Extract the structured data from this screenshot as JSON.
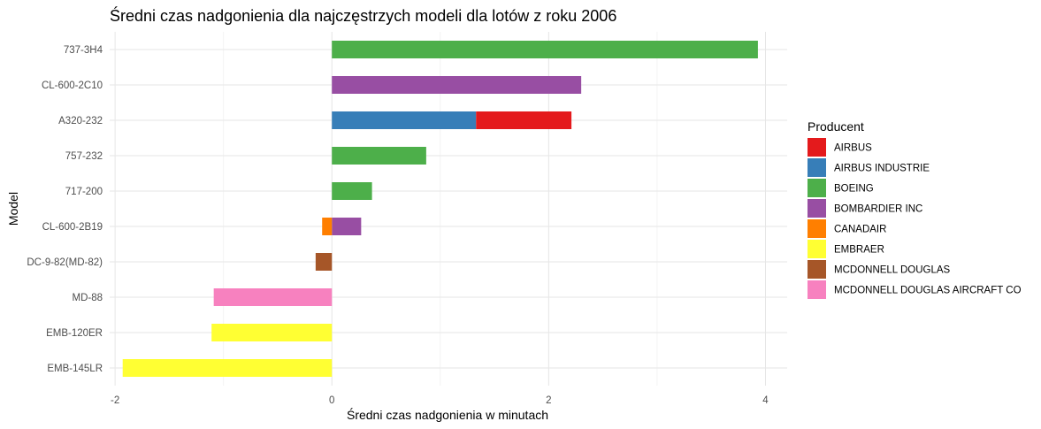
{
  "chart_data": {
    "type": "bar",
    "orientation": "horizontal",
    "stacked": true,
    "title": "Średni czas nadgonienia dla najczęstrzych modeli dla lotów z roku 2006",
    "xlabel": "Średni czas nadgonienia w minutach",
    "ylabel": "Model",
    "xlim": [
      -2.05,
      4.2
    ],
    "xticks": [
      -2,
      0,
      2,
      4
    ],
    "grid": true,
    "legend_position": "right",
    "categories": [
      "737-3H4",
      "CL-600-2C10",
      "A320-232",
      "757-232",
      "717-200",
      "CL-600-2B19",
      "DC-9-82(MD-82)",
      "MD-88",
      "EMB-120ER",
      "EMB-145LR"
    ],
    "legend": {
      "title": "Producent",
      "entries": [
        {
          "name": "AIRBUS",
          "color": "#E41A1C"
        },
        {
          "name": "AIRBUS INDUSTRIE",
          "color": "#377EB8"
        },
        {
          "name": "BOEING",
          "color": "#4DAF4A"
        },
        {
          "name": "BOMBARDIER INC",
          "color": "#984EA3"
        },
        {
          "name": "CANADAIR",
          "color": "#FF7F00"
        },
        {
          "name": "EMBRAER",
          "color": "#FFFF33"
        },
        {
          "name": "MCDONNELL DOUGLAS",
          "color": "#A65628"
        },
        {
          "name": "MCDONNELL DOUGLAS AIRCRAFT CO",
          "color": "#F781BF"
        }
      ]
    },
    "bars": [
      {
        "category": "737-3H4",
        "segments": [
          {
            "producer": "BOEING",
            "value": 3.93
          }
        ]
      },
      {
        "category": "CL-600-2C10",
        "segments": [
          {
            "producer": "BOMBARDIER INC",
            "value": 2.3
          }
        ]
      },
      {
        "category": "A320-232",
        "segments": [
          {
            "producer": "AIRBUS INDUSTRIE",
            "value": 1.33
          },
          {
            "producer": "AIRBUS",
            "value": 0.88
          }
        ]
      },
      {
        "category": "757-232",
        "segments": [
          {
            "producer": "BOEING",
            "value": 0.87
          }
        ]
      },
      {
        "category": "717-200",
        "segments": [
          {
            "producer": "BOEING",
            "value": 0.37
          }
        ]
      },
      {
        "category": "CL-600-2B19",
        "segments": [
          {
            "producer": "BOMBARDIER INC",
            "value": 0.27
          },
          {
            "producer": "CANADAIR",
            "value": -0.09
          }
        ]
      },
      {
        "category": "DC-9-82(MD-82)",
        "segments": [
          {
            "producer": "MCDONNELL DOUGLAS",
            "value": -0.15
          }
        ]
      },
      {
        "category": "MD-88",
        "segments": [
          {
            "producer": "MCDONNELL DOUGLAS AIRCRAFT CO",
            "value": -1.09
          }
        ]
      },
      {
        "category": "EMB-120ER",
        "segments": [
          {
            "producer": "EMBRAER",
            "value": -1.11
          }
        ]
      },
      {
        "category": "EMB-145LR",
        "segments": [
          {
            "producer": "EMBRAER",
            "value": -1.93
          }
        ]
      }
    ]
  }
}
